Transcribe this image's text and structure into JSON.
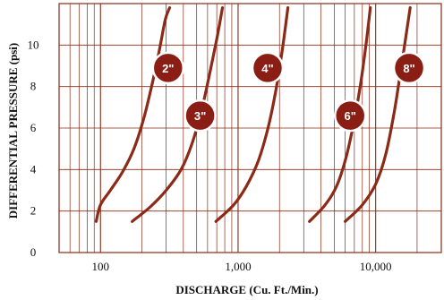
{
  "chart_data": {
    "type": "line",
    "xlabel": "DISCHARGE (Cu. Ft./Min.)",
    "ylabel": "DIFFERENTIAL PRESSURE (psi)",
    "xscale": "log",
    "xlim": [
      50,
      30000
    ],
    "ylim": [
      0,
      12
    ],
    "xticks": [
      100,
      1000,
      10000
    ],
    "xtick_labels": [
      "100",
      "1,000",
      "10,000"
    ],
    "yticks": [
      0,
      2,
      4,
      6,
      8,
      10
    ],
    "ytick_labels": [
      "0",
      "2",
      "4",
      "6",
      "8",
      "10"
    ],
    "grid": true,
    "colors": {
      "line": "#8b2a17",
      "grid": "#8b2a17",
      "badge": "#8b1e14",
      "badge_border": "#ffffff",
      "badge_text": "#ffffff"
    },
    "series": [
      {
        "name": "2\"",
        "label_at": [
          310,
          8.9
        ],
        "points": [
          [
            93,
            1.5
          ],
          [
            100,
            2.3
          ],
          [
            118,
            3.0
          ],
          [
            145,
            3.9
          ],
          [
            175,
            5.0
          ],
          [
            205,
            6.4
          ],
          [
            235,
            8.0
          ],
          [
            265,
            9.6
          ],
          [
            295,
            11.2
          ],
          [
            318,
            11.8
          ]
        ]
      },
      {
        "name": "3\"",
        "label_at": [
          530,
          6.6
        ],
        "points": [
          [
            170,
            1.5
          ],
          [
            230,
            2.2
          ],
          [
            300,
            3.0
          ],
          [
            385,
            4.0
          ],
          [
            460,
            5.2
          ],
          [
            540,
            6.8
          ],
          [
            620,
            8.6
          ],
          [
            700,
            10.3
          ],
          [
            770,
            11.8
          ]
        ]
      },
      {
        "name": "4\"",
        "label_at": [
          1640,
          8.9
        ],
        "points": [
          [
            690,
            1.5
          ],
          [
            930,
            2.3
          ],
          [
            1150,
            3.2
          ],
          [
            1400,
            4.4
          ],
          [
            1650,
            6.0
          ],
          [
            1880,
            7.8
          ],
          [
            2100,
            9.8
          ],
          [
            2300,
            11.8
          ]
        ]
      },
      {
        "name": "6\"",
        "label_at": [
          6530,
          6.6
        ],
        "points": [
          [
            3300,
            1.5
          ],
          [
            4300,
            2.3
          ],
          [
            5200,
            3.2
          ],
          [
            6100,
            4.6
          ],
          [
            7000,
            6.4
          ],
          [
            7800,
            8.2
          ],
          [
            8500,
            10.0
          ],
          [
            9150,
            11.8
          ]
        ]
      },
      {
        "name": "8\"",
        "label_at": [
          17500,
          8.9
        ],
        "points": [
          [
            6000,
            1.5
          ],
          [
            8000,
            2.3
          ],
          [
            10000,
            3.3
          ],
          [
            11800,
            4.7
          ],
          [
            13500,
            6.6
          ],
          [
            15000,
            8.5
          ],
          [
            16400,
            10.2
          ],
          [
            17800,
            11.8
          ]
        ]
      }
    ]
  }
}
